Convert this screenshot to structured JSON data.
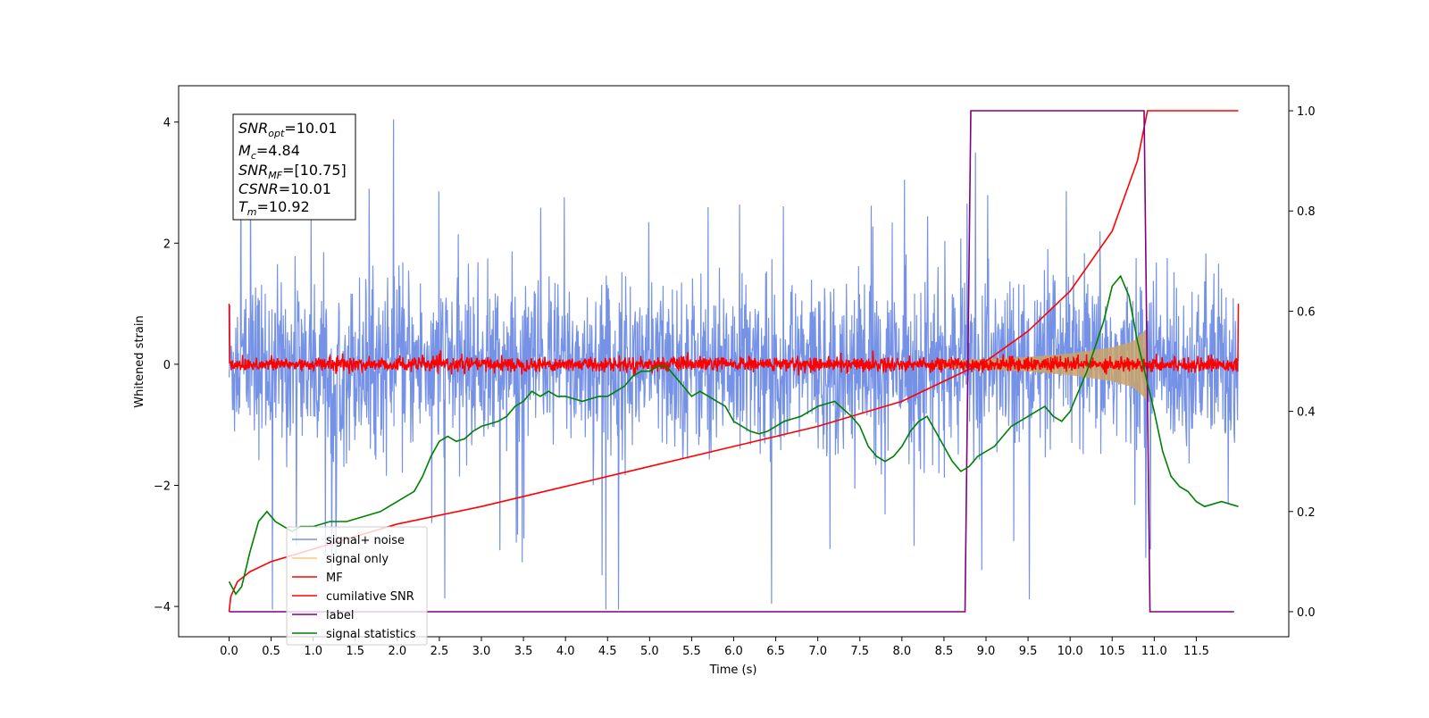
{
  "chart_data": {
    "type": "line",
    "xlabel": "Time (s)",
    "ylabel": "Whitened strain",
    "xlim": [
      -0.6,
      12.6
    ],
    "ylim_left": [
      -4.5,
      4.6
    ],
    "ylim_right": [
      -0.05,
      1.05
    ],
    "x_ticks": [
      "0.0",
      "0.5",
      "1.0",
      "1.5",
      "2.0",
      "2.5",
      "3.0",
      "3.5",
      "4.0",
      "4.5",
      "5.0",
      "5.5",
      "6.0",
      "6.5",
      "7.0",
      "7.5",
      "8.0",
      "8.5",
      "9.0",
      "9.5",
      "10.0",
      "10.5",
      "11.0",
      "11.5"
    ],
    "y_ticks_left": [
      "4",
      "2",
      "0",
      "−2",
      "−4"
    ],
    "y_ticks_right": [
      "1.0",
      "0.8",
      "0.6",
      "0.4",
      "0.2",
      "0.0"
    ],
    "legend_position": "lower-left",
    "annotation": {
      "snr_opt": {
        "name": "SNR",
        "sub": "opt",
        "value": "=10.01"
      },
      "mc": {
        "name": "M",
        "sub": "c",
        "value": "=4.84"
      },
      "snr_mf": {
        "name": "SNR",
        "sub": "MF",
        "value": "=[10.75]"
      },
      "csnr": {
        "name": "CSNR",
        "sub": "",
        "value": "=10.01"
      },
      "tm": {
        "name": "T",
        "sub": "m",
        "value": "=10.92"
      }
    },
    "series": [
      {
        "name": "signal+ noise",
        "axis": "left",
        "color": "#7692e7",
        "description_values": {
          "x_range": [
            0,
            12
          ],
          "typical_band": [
            -1.5,
            1.5
          ],
          "peak_max": 4.15,
          "peak_min": -4.05
        }
      },
      {
        "name": "signal only",
        "axis": "left",
        "color": "#ffc978",
        "envelope": {
          "x": [
            0,
            8.5,
            9.5,
            10.0,
            10.5,
            10.75,
            10.92,
            10.93
          ],
          "amp": [
            0.02,
            0.06,
            0.12,
            0.18,
            0.28,
            0.38,
            0.6,
            0.0
          ]
        }
      },
      {
        "name": "MF",
        "axis": "left",
        "color": "#ff0000",
        "description_values": {
          "typical_band": [
            -0.15,
            0.15
          ],
          "edge_value": 1.0
        }
      },
      {
        "name": "cumilative SNR",
        "axis": "right",
        "color": "#ff0000",
        "x": [
          0,
          0.02,
          0.1,
          0.25,
          0.5,
          1.0,
          1.5,
          2.0,
          3.0,
          4.0,
          5.0,
          6.0,
          7.0,
          8.0,
          8.5,
          9.0,
          9.5,
          10.0,
          10.5,
          10.8,
          10.92,
          12.0
        ],
        "y": [
          0.0,
          0.03,
          0.06,
          0.08,
          0.1,
          0.125,
          0.15,
          0.175,
          0.21,
          0.25,
          0.29,
          0.33,
          0.37,
          0.42,
          0.46,
          0.5,
          0.56,
          0.64,
          0.76,
          0.9,
          1.0,
          1.0
        ]
      },
      {
        "name": "label",
        "axis": "right",
        "color": "#800080",
        "x": [
          0,
          8.75,
          8.82,
          10.88,
          10.95,
          11.95
        ],
        "y": [
          0,
          0,
          1,
          1,
          0,
          0
        ]
      },
      {
        "name": "signal statistics",
        "axis": "right",
        "color": "#008000",
        "x": [
          0.0,
          0.08,
          0.15,
          0.25,
          0.35,
          0.45,
          0.55,
          0.65,
          0.75,
          0.85,
          1.0,
          1.2,
          1.4,
          1.6,
          1.8,
          2.0,
          2.2,
          2.3,
          2.4,
          2.5,
          2.6,
          2.7,
          2.8,
          2.9,
          3.0,
          3.1,
          3.2,
          3.3,
          3.4,
          3.5,
          3.6,
          3.7,
          3.8,
          3.9,
          4.0,
          4.1,
          4.2,
          4.3,
          4.4,
          4.5,
          4.6,
          4.7,
          4.8,
          4.9,
          5.0,
          5.1,
          5.2,
          5.3,
          5.4,
          5.5,
          5.6,
          5.7,
          5.8,
          5.9,
          6.0,
          6.1,
          6.2,
          6.3,
          6.4,
          6.5,
          6.6,
          6.8,
          7.0,
          7.2,
          7.4,
          7.5,
          7.6,
          7.7,
          7.8,
          7.9,
          8.0,
          8.1,
          8.2,
          8.3,
          8.4,
          8.5,
          8.6,
          8.7,
          8.8,
          8.9,
          9.0,
          9.1,
          9.2,
          9.3,
          9.4,
          9.5,
          9.6,
          9.7,
          9.8,
          9.9,
          10.0,
          10.1,
          10.2,
          10.3,
          10.4,
          10.5,
          10.6,
          10.7,
          10.8,
          10.9,
          11.0,
          11.1,
          11.2,
          11.3,
          11.4,
          11.5,
          11.6,
          11.8,
          12.0
        ],
        "y": [
          0.06,
          0.035,
          0.05,
          0.12,
          0.18,
          0.2,
          0.18,
          0.17,
          0.16,
          0.17,
          0.17,
          0.18,
          0.18,
          0.19,
          0.2,
          0.22,
          0.24,
          0.27,
          0.31,
          0.34,
          0.35,
          0.34,
          0.345,
          0.36,
          0.37,
          0.375,
          0.38,
          0.39,
          0.41,
          0.42,
          0.44,
          0.43,
          0.44,
          0.43,
          0.43,
          0.425,
          0.42,
          0.425,
          0.43,
          0.43,
          0.44,
          0.45,
          0.47,
          0.48,
          0.48,
          0.49,
          0.49,
          0.47,
          0.45,
          0.43,
          0.44,
          0.43,
          0.42,
          0.41,
          0.38,
          0.37,
          0.36,
          0.355,
          0.36,
          0.37,
          0.38,
          0.39,
          0.41,
          0.42,
          0.39,
          0.37,
          0.33,
          0.31,
          0.3,
          0.31,
          0.33,
          0.36,
          0.38,
          0.39,
          0.36,
          0.33,
          0.3,
          0.28,
          0.29,
          0.31,
          0.32,
          0.33,
          0.35,
          0.37,
          0.38,
          0.39,
          0.4,
          0.41,
          0.39,
          0.38,
          0.4,
          0.44,
          0.48,
          0.53,
          0.58,
          0.65,
          0.67,
          0.63,
          0.54,
          0.47,
          0.4,
          0.32,
          0.27,
          0.25,
          0.24,
          0.22,
          0.21,
          0.22,
          0.21
        ]
      }
    ]
  }
}
